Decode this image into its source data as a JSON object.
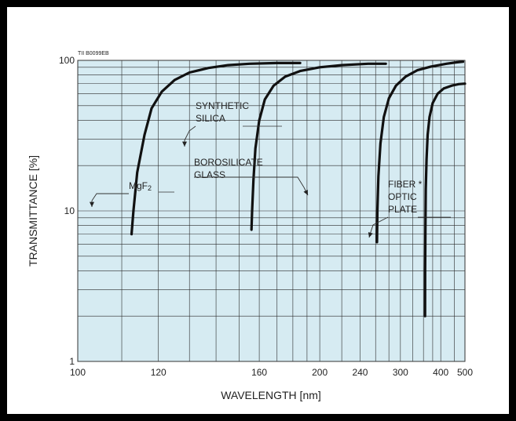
{
  "chart_data": {
    "type": "line",
    "figure_code": "TII B0099EB",
    "xlabel": "WAVELENGTH [nm]",
    "ylabel": "TRANSMITTANCE [%]",
    "x_scale": "reciprocal",
    "y_scale": "log",
    "xlim": [
      100,
      500
    ],
    "ylim": [
      1,
      100
    ],
    "x_ticks": [
      100,
      120,
      160,
      200,
      240,
      300,
      400,
      500
    ],
    "x_tick_labels": [
      "100",
      "120",
      "160",
      "200",
      "240",
      "300",
      "400",
      "500"
    ],
    "y_ticks": [
      1,
      10,
      100
    ],
    "y_tick_labels": [
      "1",
      "10",
      "100"
    ],
    "grid": true,
    "series": [
      {
        "name": "MgF2",
        "label_lines": [
          "MgF",
          "2"
        ],
        "color": "#111111",
        "points": [
          [
            112.5,
            7
          ],
          [
            113,
            10
          ],
          [
            114,
            18
          ],
          [
            116,
            32
          ],
          [
            118,
            48
          ],
          [
            121,
            62
          ],
          [
            125,
            74
          ],
          [
            130,
            83
          ],
          [
            137,
            89
          ],
          [
            145,
            93
          ],
          [
            155,
            95
          ],
          [
            170,
            96
          ],
          [
            185,
            96
          ]
        ]
      },
      {
        "name": "SYNTHETIC SILICA",
        "label_lines": [
          "SYNTHETIC",
          "SILICA"
        ],
        "color": "#111111",
        "points": [
          [
            156,
            7.5
          ],
          [
            156.3,
            10
          ],
          [
            157,
            16
          ],
          [
            158,
            26
          ],
          [
            160,
            40
          ],
          [
            163,
            55
          ],
          [
            168,
            68
          ],
          [
            175,
            78
          ],
          [
            185,
            85
          ],
          [
            200,
            90
          ],
          [
            220,
            93
          ],
          [
            250,
            95
          ],
          [
            275,
            95
          ]
        ]
      },
      {
        "name": "BOROSILICATE GLASS",
        "label_lines": [
          "BOROSILICATE",
          "GLASS"
        ],
        "color": "#111111",
        "points": [
          [
            262,
            6.2
          ],
          [
            262.5,
            10
          ],
          [
            264,
            17
          ],
          [
            267,
            28
          ],
          [
            272,
            42
          ],
          [
            280,
            56
          ],
          [
            292,
            68
          ],
          [
            310,
            78
          ],
          [
            335,
            86
          ],
          [
            370,
            91
          ],
          [
            420,
            95
          ],
          [
            460,
            97
          ],
          [
            490,
            98
          ]
        ]
      },
      {
        "name": "FIBER OPTIC PLATE",
        "label_lines": [
          "FIBER *",
          "OPTIC",
          "PLATE"
        ],
        "color": "#111111",
        "points": [
          [
            354,
            2
          ],
          [
            354.3,
            4
          ],
          [
            355,
            8
          ],
          [
            356,
            14
          ],
          [
            358,
            22
          ],
          [
            361,
            32
          ],
          [
            366,
            42
          ],
          [
            375,
            52
          ],
          [
            390,
            60
          ],
          [
            410,
            65
          ],
          [
            440,
            68
          ],
          [
            470,
            69.5
          ],
          [
            500,
            70
          ]
        ]
      }
    ]
  }
}
